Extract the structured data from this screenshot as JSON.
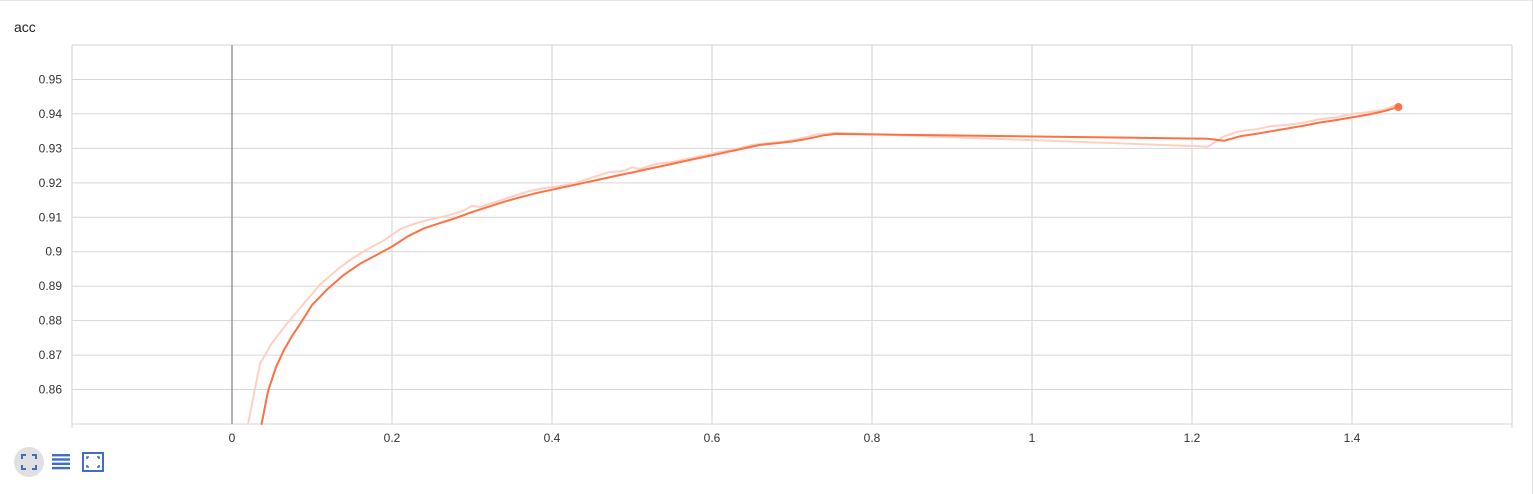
{
  "colors": {
    "line": "#ff7043",
    "line_raw": "#ffd0c2",
    "grid": "#d6d6d6",
    "zero_axis": "#8a8a8a",
    "toolbar_icon": "#3f6ec4"
  },
  "toolbar": {
    "icons": [
      "fit-domain-icon",
      "toggle-log-scale-icon",
      "expand-chart-icon"
    ]
  },
  "chart_data": {
    "type": "line",
    "title": "acc",
    "xlabel": "",
    "ylabel": "",
    "xlim": [
      -0.2,
      1.6
    ],
    "ylim": [
      0.85,
      0.96
    ],
    "x_ticks": [
      "0",
      "0.2",
      "0.4",
      "0.6",
      "0.8",
      "1",
      "1.2",
      "1.4"
    ],
    "x_tick_values": [
      0,
      0.2,
      0.4,
      0.6,
      0.8,
      1.0,
      1.2,
      1.4
    ],
    "y_ticks": [
      "0.86",
      "0.87",
      "0.88",
      "0.89",
      "0.9",
      "0.91",
      "0.92",
      "0.93",
      "0.94",
      "0.95"
    ],
    "y_tick_values": [
      0.86,
      0.87,
      0.88,
      0.89,
      0.9,
      0.91,
      0.92,
      0.93,
      0.94,
      0.95
    ],
    "grid": true,
    "series": [
      {
        "role": "raw",
        "x": [
          0.02,
          0.035,
          0.05,
          0.07,
          0.09,
          0.11,
          0.13,
          0.15,
          0.17,
          0.19,
          0.21,
          0.23,
          0.25,
          0.27,
          0.29,
          0.3,
          0.31,
          0.33,
          0.35,
          0.37,
          0.39,
          0.41,
          0.43,
          0.45,
          0.47,
          0.49,
          0.5,
          0.51,
          0.53,
          0.55,
          0.57,
          0.59,
          0.61,
          0.63,
          0.65,
          0.67,
          0.69,
          0.71,
          0.73,
          0.755,
          1.22,
          1.24,
          1.26,
          1.28,
          1.3,
          1.32,
          1.34,
          1.36,
          1.38,
          1.4,
          1.42,
          1.44,
          1.455
        ],
        "y": [
          0.85,
          0.8675,
          0.8735,
          0.8795,
          0.885,
          0.8905,
          0.8945,
          0.898,
          0.9008,
          0.9033,
          0.9065,
          0.9083,
          0.9095,
          0.9105,
          0.912,
          0.9133,
          0.913,
          0.9145,
          0.916,
          0.9175,
          0.9185,
          0.919,
          0.92,
          0.9215,
          0.923,
          0.9235,
          0.9245,
          0.924,
          0.9255,
          0.926,
          0.927,
          0.928,
          0.929,
          0.9298,
          0.931,
          0.9315,
          0.932,
          0.9328,
          0.934,
          0.9345,
          0.9305,
          0.9335,
          0.935,
          0.9355,
          0.9365,
          0.9368,
          0.9375,
          0.9385,
          0.939,
          0.94,
          0.9405,
          0.9412,
          0.9425
        ]
      },
      {
        "role": "smoothed",
        "x": [
          0.037,
          0.045,
          0.055,
          0.065,
          0.075,
          0.085,
          0.1,
          0.12,
          0.14,
          0.16,
          0.18,
          0.2,
          0.22,
          0.24,
          0.26,
          0.28,
          0.3,
          0.32,
          0.34,
          0.36,
          0.38,
          0.4,
          0.42,
          0.44,
          0.46,
          0.48,
          0.5,
          0.52,
          0.54,
          0.56,
          0.58,
          0.6,
          0.62,
          0.64,
          0.66,
          0.68,
          0.7,
          0.72,
          0.74,
          0.755,
          1.22,
          1.24,
          1.26,
          1.28,
          1.3,
          1.32,
          1.34,
          1.36,
          1.38,
          1.4,
          1.42,
          1.44,
          1.458
        ],
        "y": [
          0.85,
          0.8595,
          0.8665,
          0.8715,
          0.8755,
          0.879,
          0.8845,
          0.8893,
          0.8933,
          0.8965,
          0.899,
          0.9015,
          0.9045,
          0.9068,
          0.9083,
          0.9098,
          0.9115,
          0.913,
          0.9145,
          0.9158,
          0.917,
          0.918,
          0.919,
          0.92,
          0.921,
          0.922,
          0.923,
          0.924,
          0.925,
          0.926,
          0.927,
          0.928,
          0.929,
          0.93,
          0.931,
          0.9315,
          0.932,
          0.9328,
          0.9338,
          0.9342,
          0.9328,
          0.9322,
          0.9335,
          0.9342,
          0.935,
          0.9358,
          0.9366,
          0.9375,
          0.9382,
          0.939,
          0.9398,
          0.9408,
          0.942
        ]
      }
    ]
  }
}
